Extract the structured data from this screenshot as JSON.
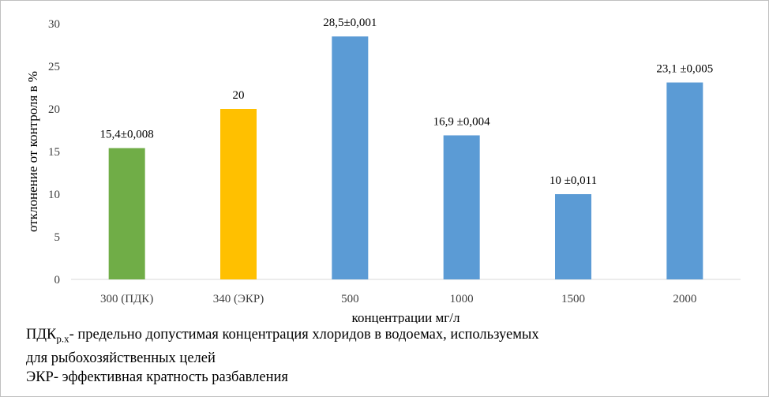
{
  "chart_data": {
    "type": "bar",
    "categories": [
      "300 (ПДК)",
      "340 (ЭКР)",
      "500",
      "1000",
      "1500",
      "2000"
    ],
    "values": [
      15.4,
      20,
      28.5,
      16.9,
      10,
      23.1
    ],
    "data_labels": [
      "15,4±0,008",
      "20",
      "28,5±0,001",
      "16,9 ±0,004",
      "10 ±0,011",
      "23,1 ±0,005"
    ],
    "bar_colors": [
      "#70ad47",
      "#ffc000",
      "#5b9bd5",
      "#5b9bd5",
      "#5b9bd5",
      "#5b9bd5"
    ],
    "xlabel": "концентрации мг/л",
    "ylabel": "отклонение от контроля в %",
    "ylim": [
      0,
      30
    ],
    "yticks": [
      0,
      5,
      10,
      15,
      20,
      25,
      30
    ],
    "grid": false,
    "legend": "none"
  },
  "footnote": {
    "line1_abbr": "ПДК",
    "line1_sub": "р.х",
    "line1_text": "- предельно допустимая концентрация хлоридов в водоемах, используемых",
    "line2": "для рыбохозяйственных целей",
    "line3": "ЭКР- эффективная кратность разбавления"
  }
}
